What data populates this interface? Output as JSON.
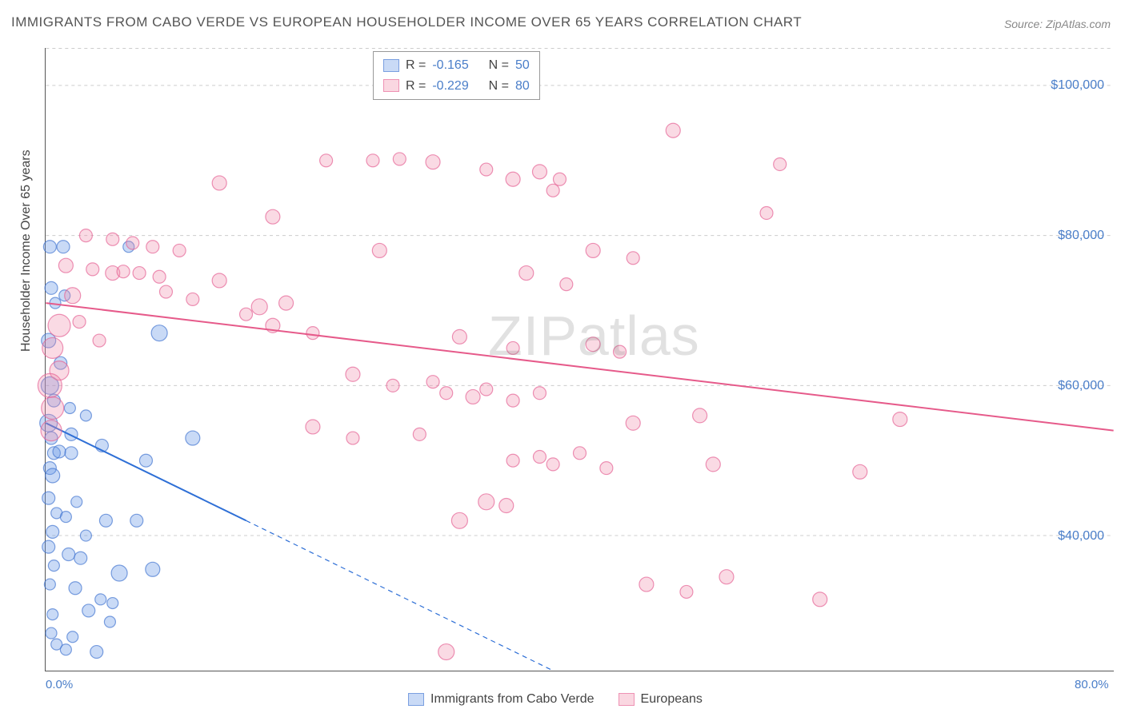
{
  "title": "IMMIGRANTS FROM CABO VERDE VS EUROPEAN HOUSEHOLDER INCOME OVER 65 YEARS CORRELATION CHART",
  "source": "Source: ZipAtlas.com",
  "watermark": {
    "zip": "ZIP",
    "atlas": "atlas"
  },
  "ylabel": "Householder Income Over 65 years",
  "chart": {
    "type": "scatter-with-regression",
    "background_color": "#ffffff",
    "grid_color": "#cccccc",
    "grid_dash": "4,4",
    "axis_color": "#555555",
    "xlim": [
      0,
      80
    ],
    "ylim": [
      22000,
      105000
    ],
    "xticks": [
      {
        "v": 0,
        "label": "0.0%"
      },
      {
        "v": 80,
        "label": "80.0%"
      }
    ],
    "yticks": [
      {
        "v": 40000,
        "label": "$40,000"
      },
      {
        "v": 60000,
        "label": "$60,000"
      },
      {
        "v": 80000,
        "label": "$80,000"
      },
      {
        "v": 100000,
        "label": "$100,000"
      }
    ],
    "tick_color": "#4a7ec9",
    "tick_fontsize": 16,
    "label_fontsize": 16,
    "series": [
      {
        "name": "Immigrants from Cabo Verde",
        "color_fill": "rgba(100,150,230,0.35)",
        "color_stroke": "rgba(70,120,210,0.7)",
        "marker_stroke_width": 1.2,
        "R": "-0.165",
        "N": "50",
        "regression": {
          "solid": {
            "x1": 0,
            "y1": 55000,
            "x2": 15,
            "y2": 42000
          },
          "dashed": {
            "x1": 15,
            "y1": 42000,
            "x2": 38,
            "y2": 22000
          },
          "color": "#2e6fd6",
          "width": 2,
          "dash": "6,5"
        },
        "points": [
          {
            "x": 0.3,
            "y": 78500,
            "r": 8
          },
          {
            "x": 1.3,
            "y": 78500,
            "r": 8
          },
          {
            "x": 6.2,
            "y": 78500,
            "r": 7
          },
          {
            "x": 0.4,
            "y": 73000,
            "r": 8
          },
          {
            "x": 0.7,
            "y": 71000,
            "r": 7
          },
          {
            "x": 1.4,
            "y": 72000,
            "r": 7
          },
          {
            "x": 0.2,
            "y": 66000,
            "r": 9
          },
          {
            "x": 8.5,
            "y": 67000,
            "r": 10
          },
          {
            "x": 1.1,
            "y": 63000,
            "r": 8
          },
          {
            "x": 0.3,
            "y": 60000,
            "r": 11
          },
          {
            "x": 0.6,
            "y": 58000,
            "r": 8
          },
          {
            "x": 1.8,
            "y": 57000,
            "r": 7
          },
          {
            "x": 0.2,
            "y": 55000,
            "r": 11
          },
          {
            "x": 3.0,
            "y": 56000,
            "r": 7
          },
          {
            "x": 0.4,
            "y": 53000,
            "r": 8
          },
          {
            "x": 1.9,
            "y": 53500,
            "r": 8
          },
          {
            "x": 11.0,
            "y": 53000,
            "r": 9
          },
          {
            "x": 4.2,
            "y": 52000,
            "r": 8
          },
          {
            "x": 0.6,
            "y": 51000,
            "r": 8
          },
          {
            "x": 1.0,
            "y": 51200,
            "r": 8
          },
          {
            "x": 1.9,
            "y": 51000,
            "r": 8
          },
          {
            "x": 0.3,
            "y": 49000,
            "r": 8
          },
          {
            "x": 0.5,
            "y": 48000,
            "r": 9
          },
          {
            "x": 7.5,
            "y": 50000,
            "r": 8
          },
          {
            "x": 0.2,
            "y": 45000,
            "r": 8
          },
          {
            "x": 2.3,
            "y": 44500,
            "r": 7
          },
          {
            "x": 0.8,
            "y": 43000,
            "r": 7
          },
          {
            "x": 1.5,
            "y": 42500,
            "r": 7
          },
          {
            "x": 4.5,
            "y": 42000,
            "r": 8
          },
          {
            "x": 6.8,
            "y": 42000,
            "r": 8
          },
          {
            "x": 0.5,
            "y": 40500,
            "r": 8
          },
          {
            "x": 3.0,
            "y": 40000,
            "r": 7
          },
          {
            "x": 0.2,
            "y": 38500,
            "r": 8
          },
          {
            "x": 1.7,
            "y": 37500,
            "r": 8
          },
          {
            "x": 2.6,
            "y": 37000,
            "r": 8
          },
          {
            "x": 0.6,
            "y": 36000,
            "r": 7
          },
          {
            "x": 5.5,
            "y": 35000,
            "r": 10
          },
          {
            "x": 8.0,
            "y": 35500,
            "r": 9
          },
          {
            "x": 0.3,
            "y": 33500,
            "r": 7
          },
          {
            "x": 2.2,
            "y": 33000,
            "r": 8
          },
          {
            "x": 4.1,
            "y": 31500,
            "r": 7
          },
          {
            "x": 5.0,
            "y": 31000,
            "r": 7
          },
          {
            "x": 3.2,
            "y": 30000,
            "r": 8
          },
          {
            "x": 0.5,
            "y": 29500,
            "r": 7
          },
          {
            "x": 4.8,
            "y": 28500,
            "r": 7
          },
          {
            "x": 0.4,
            "y": 27000,
            "r": 7
          },
          {
            "x": 2.0,
            "y": 26500,
            "r": 7
          },
          {
            "x": 0.8,
            "y": 25500,
            "r": 7
          },
          {
            "x": 1.5,
            "y": 24800,
            "r": 7
          },
          {
            "x": 3.8,
            "y": 24500,
            "r": 8
          }
        ]
      },
      {
        "name": "Europeans",
        "color_fill": "rgba(240,140,170,0.32)",
        "color_stroke": "rgba(230,100,150,0.7)",
        "marker_stroke_width": 1.2,
        "R": "-0.229",
        "N": "80",
        "regression": {
          "solid": {
            "x1": 0,
            "y1": 71000,
            "x2": 80,
            "y2": 54000
          },
          "color": "#e65a8a",
          "width": 2
        },
        "points": [
          {
            "x": 47,
            "y": 94000,
            "r": 9
          },
          {
            "x": 21,
            "y": 90000,
            "r": 8
          },
          {
            "x": 24.5,
            "y": 90000,
            "r": 8
          },
          {
            "x": 26.5,
            "y": 90200,
            "r": 8
          },
          {
            "x": 29,
            "y": 89800,
            "r": 9
          },
          {
            "x": 33,
            "y": 88800,
            "r": 8
          },
          {
            "x": 37,
            "y": 88500,
            "r": 9
          },
          {
            "x": 38.5,
            "y": 87500,
            "r": 8
          },
          {
            "x": 13,
            "y": 87000,
            "r": 9
          },
          {
            "x": 55,
            "y": 89500,
            "r": 8
          },
          {
            "x": 35,
            "y": 87500,
            "r": 9
          },
          {
            "x": 38,
            "y": 86000,
            "r": 8
          },
          {
            "x": 54,
            "y": 83000,
            "r": 8
          },
          {
            "x": 17,
            "y": 82500,
            "r": 9
          },
          {
            "x": 3,
            "y": 80000,
            "r": 8
          },
          {
            "x": 5,
            "y": 79500,
            "r": 8
          },
          {
            "x": 6.5,
            "y": 79000,
            "r": 8
          },
          {
            "x": 8,
            "y": 78500,
            "r": 8
          },
          {
            "x": 10,
            "y": 78000,
            "r": 8
          },
          {
            "x": 25,
            "y": 78000,
            "r": 9
          },
          {
            "x": 41,
            "y": 78000,
            "r": 9
          },
          {
            "x": 44,
            "y": 77000,
            "r": 8
          },
          {
            "x": 1.5,
            "y": 76000,
            "r": 9
          },
          {
            "x": 3.5,
            "y": 75500,
            "r": 8
          },
          {
            "x": 5,
            "y": 75000,
            "r": 9
          },
          {
            "x": 5.8,
            "y": 75200,
            "r": 8
          },
          {
            "x": 7,
            "y": 75000,
            "r": 8
          },
          {
            "x": 8.5,
            "y": 74500,
            "r": 8
          },
          {
            "x": 13,
            "y": 74000,
            "r": 9
          },
          {
            "x": 36,
            "y": 75000,
            "r": 9
          },
          {
            "x": 39,
            "y": 73500,
            "r": 8
          },
          {
            "x": 2,
            "y": 72000,
            "r": 10
          },
          {
            "x": 9,
            "y": 72500,
            "r": 8
          },
          {
            "x": 11,
            "y": 71500,
            "r": 8
          },
          {
            "x": 18,
            "y": 71000,
            "r": 9
          },
          {
            "x": 16,
            "y": 70500,
            "r": 10
          },
          {
            "x": 1,
            "y": 68000,
            "r": 14
          },
          {
            "x": 2.5,
            "y": 68500,
            "r": 8
          },
          {
            "x": 15,
            "y": 69500,
            "r": 8
          },
          {
            "x": 0.5,
            "y": 65000,
            "r": 13
          },
          {
            "x": 4,
            "y": 66000,
            "r": 8
          },
          {
            "x": 17,
            "y": 68000,
            "r": 9
          },
          {
            "x": 20,
            "y": 67000,
            "r": 8
          },
          {
            "x": 31,
            "y": 66500,
            "r": 9
          },
          {
            "x": 35,
            "y": 65000,
            "r": 8
          },
          {
            "x": 41,
            "y": 65500,
            "r": 9
          },
          {
            "x": 43,
            "y": 64500,
            "r": 8
          },
          {
            "x": 1,
            "y": 62000,
            "r": 12
          },
          {
            "x": 0.3,
            "y": 60000,
            "r": 15
          },
          {
            "x": 0.5,
            "y": 57000,
            "r": 14
          },
          {
            "x": 23,
            "y": 61500,
            "r": 9
          },
          {
            "x": 26,
            "y": 60000,
            "r": 8
          },
          {
            "x": 29,
            "y": 60500,
            "r": 8
          },
          {
            "x": 30,
            "y": 59000,
            "r": 8
          },
          {
            "x": 32,
            "y": 58500,
            "r": 9
          },
          {
            "x": 33,
            "y": 59500,
            "r": 8
          },
          {
            "x": 35,
            "y": 58000,
            "r": 8
          },
          {
            "x": 37,
            "y": 59000,
            "r": 8
          },
          {
            "x": 0.4,
            "y": 54000,
            "r": 13
          },
          {
            "x": 20,
            "y": 54500,
            "r": 9
          },
          {
            "x": 23,
            "y": 53000,
            "r": 8
          },
          {
            "x": 28,
            "y": 53500,
            "r": 8
          },
          {
            "x": 44,
            "y": 55000,
            "r": 9
          },
          {
            "x": 49,
            "y": 56000,
            "r": 9
          },
          {
            "x": 64,
            "y": 55500,
            "r": 9
          },
          {
            "x": 35,
            "y": 50000,
            "r": 8
          },
          {
            "x": 37,
            "y": 50500,
            "r": 8
          },
          {
            "x": 38,
            "y": 49500,
            "r": 8
          },
          {
            "x": 40,
            "y": 51000,
            "r": 8
          },
          {
            "x": 42,
            "y": 49000,
            "r": 8
          },
          {
            "x": 50,
            "y": 49500,
            "r": 9
          },
          {
            "x": 61,
            "y": 48500,
            "r": 9
          },
          {
            "x": 33,
            "y": 44500,
            "r": 10
          },
          {
            "x": 34.5,
            "y": 44000,
            "r": 9
          },
          {
            "x": 31,
            "y": 42000,
            "r": 10
          },
          {
            "x": 45,
            "y": 33500,
            "r": 9
          },
          {
            "x": 51,
            "y": 34500,
            "r": 9
          },
          {
            "x": 58,
            "y": 31500,
            "r": 9
          },
          {
            "x": 48,
            "y": 32500,
            "r": 8
          },
          {
            "x": 30,
            "y": 24500,
            "r": 10
          }
        ]
      }
    ]
  },
  "legend_top": {
    "rows": [
      {
        "swatch": "blue",
        "R_label": "R =",
        "R": "-0.165",
        "N_label": "N =",
        "N": "50"
      },
      {
        "swatch": "pink",
        "R_label": "R =",
        "R": "-0.229",
        "N_label": "N =",
        "N": "80"
      }
    ]
  },
  "legend_bottom": {
    "items": [
      {
        "swatch": "blue",
        "label": "Immigrants from Cabo Verde"
      },
      {
        "swatch": "pink",
        "label": "Europeans"
      }
    ]
  }
}
